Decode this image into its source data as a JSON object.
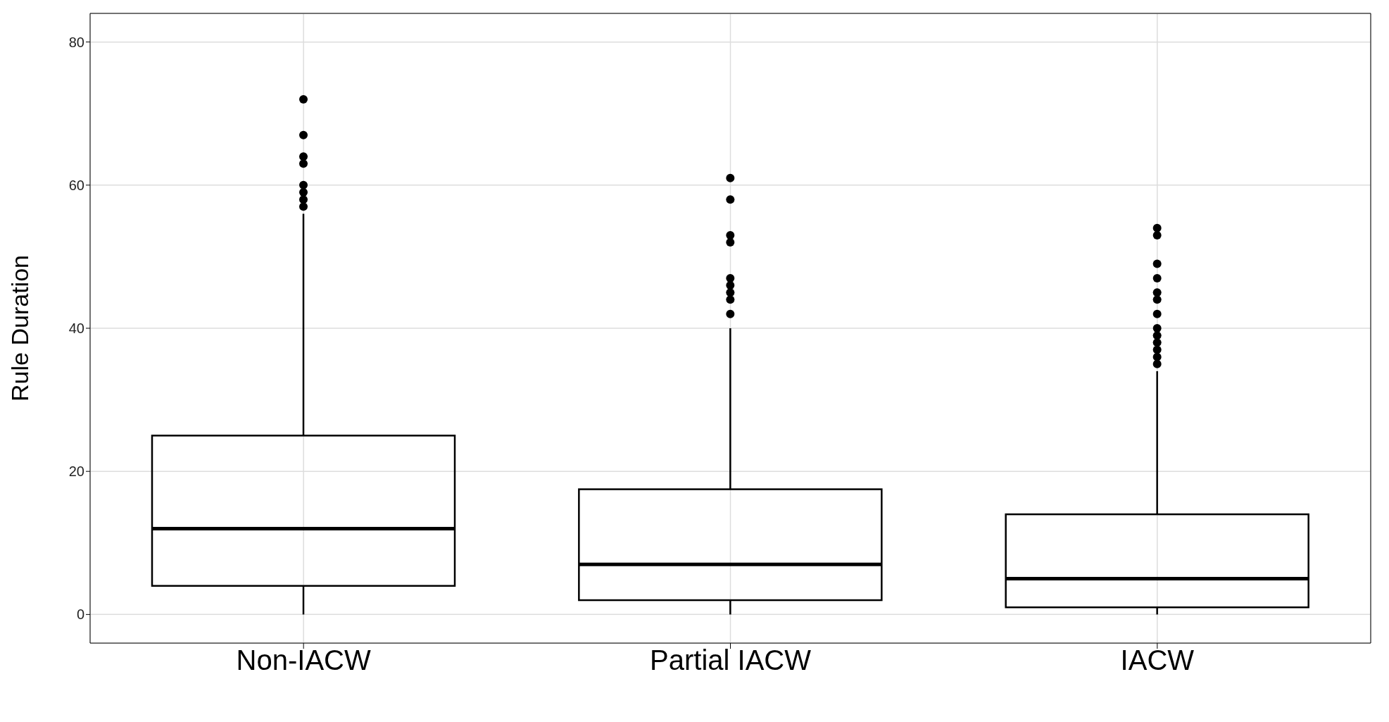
{
  "chart_data": {
    "type": "box",
    "ylabel": "Rule Duration",
    "categories": [
      "Non-IACW",
      "Partial IACW",
      "IACW"
    ],
    "boxes": [
      {
        "low": 0,
        "q1": 4,
        "median": 12,
        "q3": 25,
        "high": 56,
        "outliers": [
          57,
          58,
          59,
          60,
          63,
          64,
          67,
          72
        ]
      },
      {
        "low": 0,
        "q1": 2,
        "median": 7,
        "q3": 17.5,
        "high": 40,
        "outliers": [
          42,
          44,
          45,
          46,
          47,
          52,
          53,
          58,
          61
        ]
      },
      {
        "low": 0,
        "q1": 1,
        "median": 5,
        "q3": 14,
        "high": 34,
        "outliers": [
          35,
          36,
          37,
          38,
          39,
          40,
          42,
          44,
          45,
          47,
          49,
          53,
          54
        ]
      }
    ],
    "ylim": [
      -4,
      84
    ],
    "yticks": [
      0,
      20,
      40,
      60,
      80
    ],
    "grid": true
  }
}
